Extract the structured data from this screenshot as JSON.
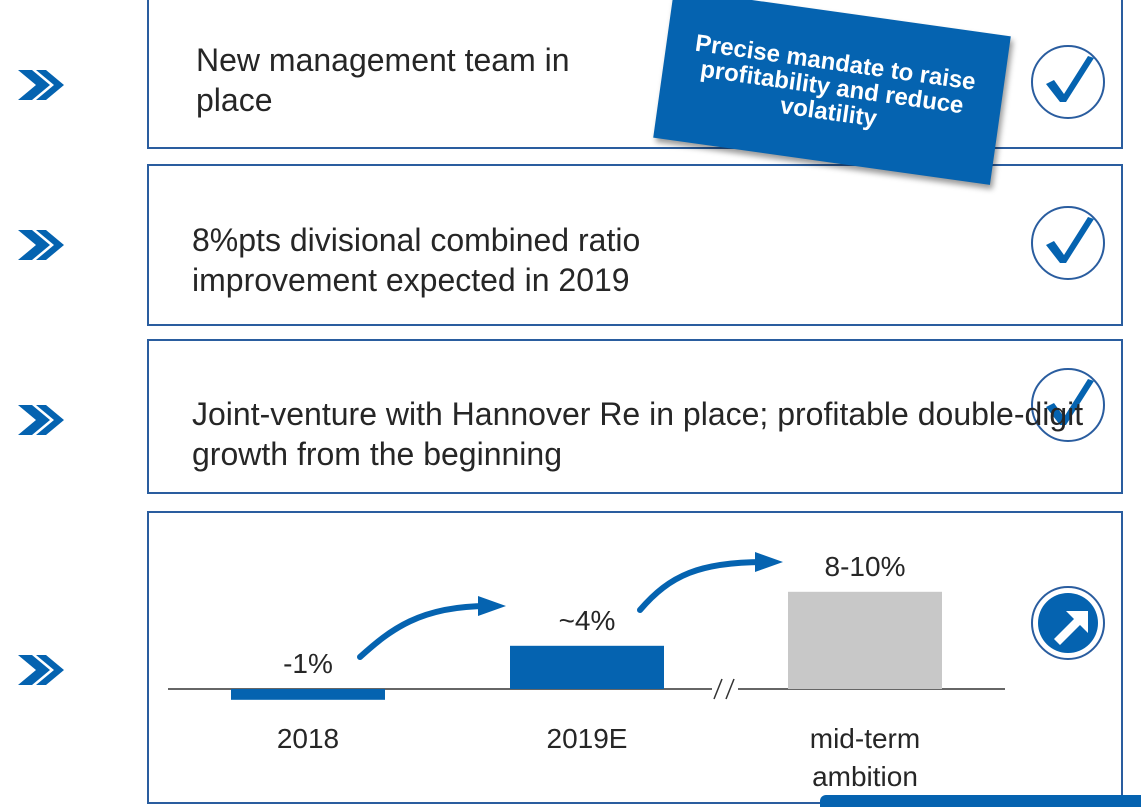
{
  "items": [
    {
      "text": "New management team in place"
    },
    {
      "text": "8%pts divisional combined ratio improvement expected in 2019"
    },
    {
      "text": "Joint-venture with Hannover Re in place; profitable double-digit growth from the beginning"
    }
  ],
  "callout": "Precise mandate to raise profitability and reduce volatility",
  "chart_data": {
    "type": "bar",
    "categories": [
      "2018",
      "2019E",
      "mid-term ambition"
    ],
    "values": [
      -1,
      4,
      9
    ],
    "value_labels": [
      "-1%",
      "~4%",
      "8-10%"
    ],
    "colors": [
      "#0563b0",
      "#0563b0",
      "#c8c8c8"
    ]
  }
}
